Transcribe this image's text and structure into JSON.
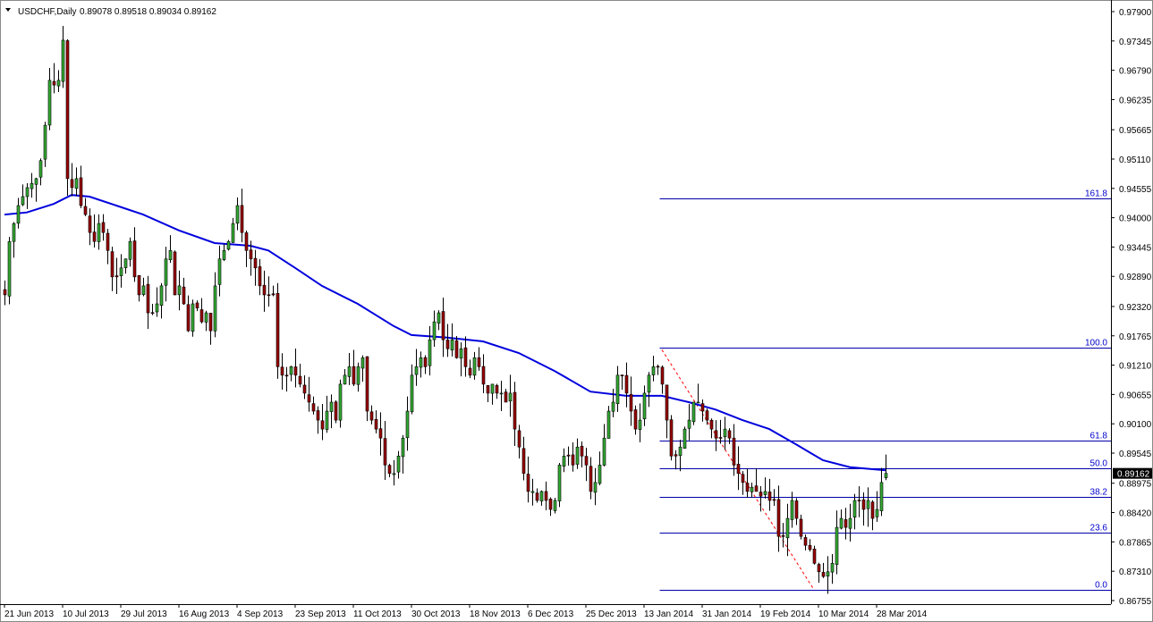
{
  "header": {
    "symbol": "USDCHF,Daily",
    "ohlc": "0.89078 0.89518 0.89034 0.89162"
  },
  "colors": {
    "bull": "#33aa33",
    "bear": "#990000",
    "wick": "#000000",
    "ma": "#0000dd",
    "fib": "#0000aa",
    "fib_trend": "#ff0000",
    "current_price_bg": "#000000"
  },
  "chart_data": {
    "type": "candlestick",
    "title": "USDCHF,Daily",
    "ylim": [
      0.8652,
      0.9812
    ],
    "y_ticks": [
      "0.97900",
      "0.97345",
      "0.96790",
      "0.96235",
      "0.95665",
      "0.95110",
      "0.94555",
      "0.94000",
      "0.93445",
      "0.92890",
      "0.92320",
      "0.91765",
      "0.91210",
      "0.90655",
      "0.90100",
      "0.89545",
      "0.88975",
      "0.88420",
      "0.87865",
      "0.87310",
      "0.86755"
    ],
    "x_ticks": [
      "21 Jun 2013",
      "10 Jul 2013",
      "29 Jul 2013",
      "16 Aug 2013",
      "4 Sep 2013",
      "23 Sep 2013",
      "11 Oct 2013",
      "30 Oct 2013",
      "18 Nov 2013",
      "6 Dec 2013",
      "25 Dec 2013",
      "13 Jan 2014",
      "31 Jan 2014",
      "19 Feb 2014",
      "10 Mar 2014",
      "28 Mar 2014"
    ],
    "x_tick_every_bars": 13,
    "current_price": "0.89162",
    "closes": [
      0.9254,
      0.9355,
      0.9389,
      0.9423,
      0.944,
      0.9457,
      0.9465,
      0.9474,
      0.9508,
      0.9575,
      0.966,
      0.9651,
      0.966,
      0.9736,
      0.9474,
      0.9457,
      0.9474,
      0.9423,
      0.9406,
      0.9372,
      0.9355,
      0.9389,
      0.9372,
      0.9338,
      0.9288,
      0.9288,
      0.9305,
      0.9322,
      0.9355,
      0.9288,
      0.9254,
      0.9271,
      0.922,
      0.922,
      0.9237,
      0.9271,
      0.9322,
      0.9338,
      0.9254,
      0.9271,
      0.9237,
      0.9186,
      0.9237,
      0.9229,
      0.9203,
      0.922,
      0.9186,
      0.9271,
      0.9322,
      0.9338,
      0.9355,
      0.9389,
      0.9423,
      0.9372,
      0.9338,
      0.9322,
      0.9305,
      0.9271,
      0.9254,
      0.9254,
      0.9254,
      0.9118,
      0.9102,
      0.9102,
      0.9118,
      0.9102,
      0.9085,
      0.9068,
      0.9051,
      0.9034,
      0.9017,
      0.9,
      0.9034,
      0.9051,
      0.9017,
      0.9085,
      0.9102,
      0.9118,
      0.9085,
      0.9118,
      0.9135,
      0.9034,
      0.9017,
      0.9,
      0.8983,
      0.8932,
      0.8916,
      0.8916,
      0.8949,
      0.8983,
      0.9034,
      0.9102,
      0.9118,
      0.9135,
      0.9118,
      0.9169,
      0.9203,
      0.922,
      0.9169,
      0.9152,
      0.9169,
      0.9135,
      0.9152,
      0.9118,
      0.9102,
      0.9135,
      0.9118,
      0.9085,
      0.9068,
      0.9085,
      0.9068,
      0.9068,
      0.9051,
      0.9068,
      0.9,
      0.8966,
      0.8916,
      0.8882,
      0.8882,
      0.8865,
      0.8882,
      0.8865,
      0.8848,
      0.8865,
      0.8932,
      0.8949,
      0.8949,
      0.8932,
      0.8966,
      0.8949,
      0.8932,
      0.8882,
      0.8899,
      0.8932,
      0.8983,
      0.9034,
      0.9051,
      0.9102,
      0.9102,
      0.9068,
      0.9034,
      0.9,
      0.9017,
      0.9068,
      0.9102,
      0.9118,
      0.9118,
      0.9085,
      0.9017,
      0.8949,
      0.8949,
      0.8966,
      0.9,
      0.9017,
      0.9051,
      0.9051,
      0.9034,
      0.9017,
      0.9,
      0.8983,
      0.8983,
      0.9,
      0.8983,
      0.8932,
      0.8916,
      0.8899,
      0.8882,
      0.889,
      0.8882,
      0.8873,
      0.8882,
      0.8865,
      0.8865,
      0.8797,
      0.8797,
      0.8831,
      0.8865,
      0.8831,
      0.8797,
      0.878,
      0.8772,
      0.8746,
      0.873,
      0.8721,
      0.873,
      0.8746,
      0.8814,
      0.8831,
      0.8814,
      0.8831,
      0.8865,
      0.8865,
      0.8848,
      0.8865,
      0.8831,
      0.8848,
      0.8899,
      0.89162
    ],
    "last_bar": {
      "open": 0.89078,
      "high": 0.89518,
      "low": 0.89034,
      "close": 0.89162
    },
    "moving_average": [
      [
        0,
        0.9406
      ],
      [
        5,
        0.941
      ],
      [
        11,
        0.9426
      ],
      [
        15,
        0.9443
      ],
      [
        19,
        0.944
      ],
      [
        25,
        0.9423
      ],
      [
        31,
        0.9406
      ],
      [
        39,
        0.9376
      ],
      [
        47,
        0.9352
      ],
      [
        55,
        0.9347
      ],
      [
        59,
        0.9338
      ],
      [
        65,
        0.9305
      ],
      [
        71,
        0.9271
      ],
      [
        79,
        0.9237
      ],
      [
        87,
        0.9195
      ],
      [
        91,
        0.9178
      ],
      [
        99,
        0.9173
      ],
      [
        107,
        0.9166
      ],
      [
        115,
        0.9144
      ],
      [
        123,
        0.911
      ],
      [
        131,
        0.9071
      ],
      [
        139,
        0.9063
      ],
      [
        147,
        0.9063
      ],
      [
        153,
        0.9051
      ],
      [
        159,
        0.9037
      ],
      [
        165,
        0.9017
      ],
      [
        171,
        0.9
      ],
      [
        177,
        0.8971
      ],
      [
        183,
        0.8941
      ],
      [
        189,
        0.8928
      ],
      [
        197,
        0.8922
      ]
    ],
    "fibonacci": {
      "start_bar": 146.5,
      "trend": {
        "from_bar": 147,
        "from_price": 0.915,
        "to_bar": 181,
        "to_price": 0.8696
      },
      "levels": [
        {
          "label": "161.8",
          "price": 0.9437
        },
        {
          "label": "100.0",
          "price": 0.9154
        },
        {
          "label": "61.8",
          "price": 0.8979
        },
        {
          "label": "50.0",
          "price": 0.8925
        },
        {
          "label": "38.2",
          "price": 0.8871
        },
        {
          "label": "23.6",
          "price": 0.8804
        },
        {
          "label": "0.0",
          "price": 0.8696
        }
      ]
    },
    "grid": false,
    "legend": "none"
  }
}
